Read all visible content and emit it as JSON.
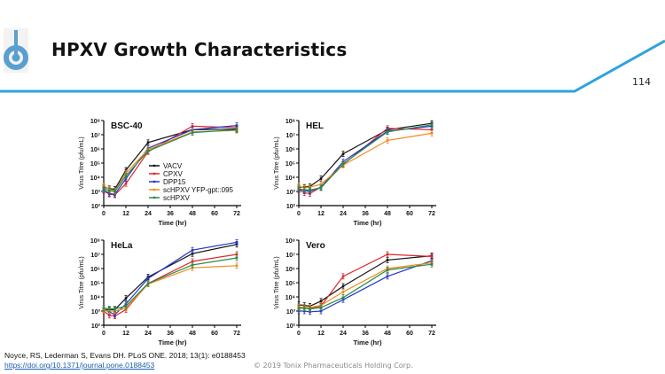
{
  "header": {
    "title": "HPXV Growth Characteristics",
    "page_number": "114",
    "accent_color": "#2ea3dc",
    "logo_color": "#5a9fd0"
  },
  "footer": {
    "citation": "Noyce, RS, Lederman S, Evans DH. PLoS ONE. 2018; 13(1): e0188453",
    "doi": "https://doi.org/10.1371/journal.pone.0188453",
    "copyright": "© 2019 Tonix Pharmaceuticals Holding Corp."
  },
  "chart_data": [
    {
      "type": "line",
      "title": "BSC-40",
      "xlabel": "Time (hr)",
      "ylabel": "Virus Titre (pfu/mL)",
      "yscale": "log",
      "xlim": [
        0,
        72
      ],
      "ylim": [
        100,
        100000000
      ],
      "xticks": [
        "0",
        "12",
        "24",
        "36",
        "48",
        "60",
        "72"
      ],
      "yticks": [
        "10²",
        "10³",
        "10⁴",
        "10⁵",
        "10⁶",
        "10⁷",
        "10⁸"
      ],
      "legend_position": "center",
      "x": [
        0,
        3,
        6,
        12,
        24,
        48,
        72
      ],
      "series": [
        {
          "name": "VACV",
          "color": "#111111",
          "log10_values": [
            3.3,
            3.2,
            3.15,
            4.5,
            6.45,
            7.35,
            7.4
          ]
        },
        {
          "name": "CPXV",
          "color": "#e0262b",
          "log10_values": [
            3.05,
            2.8,
            2.75,
            3.55,
            5.8,
            7.6,
            7.5
          ]
        },
        {
          "name": "DPP15",
          "color": "#2636c8",
          "log10_values": [
            3.1,
            2.85,
            2.8,
            3.9,
            6.05,
            7.35,
            7.65
          ]
        },
        {
          "name": "scHPXV YFP-gpt::095",
          "color": "#f08a1c",
          "log10_values": [
            3.4,
            3.15,
            3.05,
            4.3,
            5.95,
            7.2,
            7.3
          ]
        },
        {
          "name": "scHPXV",
          "color": "#2a8a4a",
          "log10_values": [
            3.2,
            3.05,
            3.0,
            4.1,
            5.85,
            7.15,
            7.35
          ]
        }
      ]
    },
    {
      "type": "line",
      "title": "HEL",
      "xlabel": "Time (hr)",
      "ylabel": "Virus Titre (pfu/mL)",
      "yscale": "log",
      "xlim": [
        0,
        72
      ],
      "ylim": [
        100,
        100000000
      ],
      "xticks": [
        "0",
        "12",
        "24",
        "36",
        "48",
        "60",
        "72"
      ],
      "yticks": [
        "10²",
        "10³",
        "10⁴",
        "10⁵",
        "10⁶",
        "10⁷",
        "10⁸"
      ],
      "x": [
        0,
        3,
        6,
        12,
        24,
        48,
        72
      ],
      "series": [
        {
          "name": "VACV",
          "color": "#111111",
          "log10_values": [
            3.3,
            3.3,
            3.35,
            3.9,
            5.65,
            7.35,
            7.8
          ]
        },
        {
          "name": "CPXV",
          "color": "#e0262b",
          "log10_values": [
            3.1,
            2.9,
            2.85,
            3.3,
            4.9,
            7.45,
            7.35
          ]
        },
        {
          "name": "DPP15",
          "color": "#2636c8",
          "log10_values": [
            3.15,
            3.05,
            3.0,
            3.3,
            5.1,
            7.25,
            7.6
          ]
        },
        {
          "name": "scHPXV YFP-gpt::095",
          "color": "#f08a1c",
          "log10_values": [
            3.4,
            3.25,
            3.3,
            3.5,
            4.85,
            6.6,
            7.1
          ]
        },
        {
          "name": "scHPXV",
          "color": "#2a8a4a",
          "log10_values": [
            3.2,
            3.1,
            3.1,
            3.25,
            4.95,
            7.2,
            7.7
          ]
        }
      ]
    },
    {
      "type": "line",
      "title": "HeLa",
      "xlabel": "Time (hr)",
      "ylabel": "Virus Titre (pfu/mL)",
      "yscale": "log",
      "xlim": [
        0,
        72
      ],
      "ylim": [
        100,
        100000000
      ],
      "xticks": [
        "0",
        "12",
        "24",
        "36",
        "48",
        "60",
        "72"
      ],
      "yticks": [
        "10²",
        "10³",
        "10⁴",
        "10⁵",
        "10⁶",
        "10⁷",
        "10⁸"
      ],
      "x": [
        0,
        3,
        6,
        12,
        24,
        48,
        72
      ],
      "series": [
        {
          "name": "VACV",
          "color": "#111111",
          "log10_values": [
            3.1,
            3.1,
            3.1,
            3.9,
            5.4,
            7.05,
            7.7
          ]
        },
        {
          "name": "CPXV",
          "color": "#e0262b",
          "log10_values": [
            3.0,
            2.7,
            2.65,
            3.1,
            4.95,
            6.5,
            7.0
          ]
        },
        {
          "name": "DPP15",
          "color": "#2636c8",
          "log10_values": [
            3.1,
            2.95,
            2.75,
            3.5,
            5.3,
            7.3,
            7.85
          ]
        },
        {
          "name": "scHPXV YFP-gpt::095",
          "color": "#f08a1c",
          "log10_values": [
            3.1,
            3.0,
            3.0,
            3.2,
            4.9,
            6.05,
            6.2
          ]
        },
        {
          "name": "scHPXV",
          "color": "#2a8a4a",
          "log10_values": [
            3.2,
            3.15,
            3.15,
            3.35,
            4.95,
            6.25,
            6.75
          ]
        }
      ]
    },
    {
      "type": "line",
      "title": "Vero",
      "xlabel": "Time (hr)",
      "ylabel": "Virus Titre (pfu/mL)",
      "yscale": "log",
      "xlim": [
        0,
        72
      ],
      "ylim": [
        100,
        100000000
      ],
      "xticks": [
        "0",
        "12",
        "24",
        "36",
        "48",
        "60",
        "72"
      ],
      "yticks": [
        "10²",
        "10³",
        "10⁴",
        "10⁵",
        "10⁶",
        "10⁷",
        "10⁸"
      ],
      "x": [
        0,
        3,
        6,
        12,
        24,
        48,
        72
      ],
      "series": [
        {
          "name": "VACV",
          "color": "#111111",
          "log10_values": [
            3.45,
            3.4,
            3.35,
            3.7,
            4.75,
            6.6,
            6.9
          ]
        },
        {
          "name": "CPXV",
          "color": "#e0262b",
          "log10_values": [
            3.25,
            3.2,
            3.2,
            3.35,
            5.45,
            7.0,
            6.85
          ]
        },
        {
          "name": "DPP15",
          "color": "#2636c8",
          "log10_values": [
            3.0,
            3.0,
            2.95,
            3.0,
            3.8,
            5.45,
            6.55
          ]
        },
        {
          "name": "scHPXV YFP-gpt::095",
          "color": "#f08a1c",
          "log10_values": [
            3.3,
            3.25,
            3.25,
            3.4,
            4.35,
            6.0,
            6.4
          ]
        },
        {
          "name": "scHPXV",
          "color": "#2a8a4a",
          "log10_values": [
            3.2,
            3.2,
            3.15,
            3.25,
            3.95,
            5.9,
            6.3
          ]
        }
      ]
    }
  ]
}
